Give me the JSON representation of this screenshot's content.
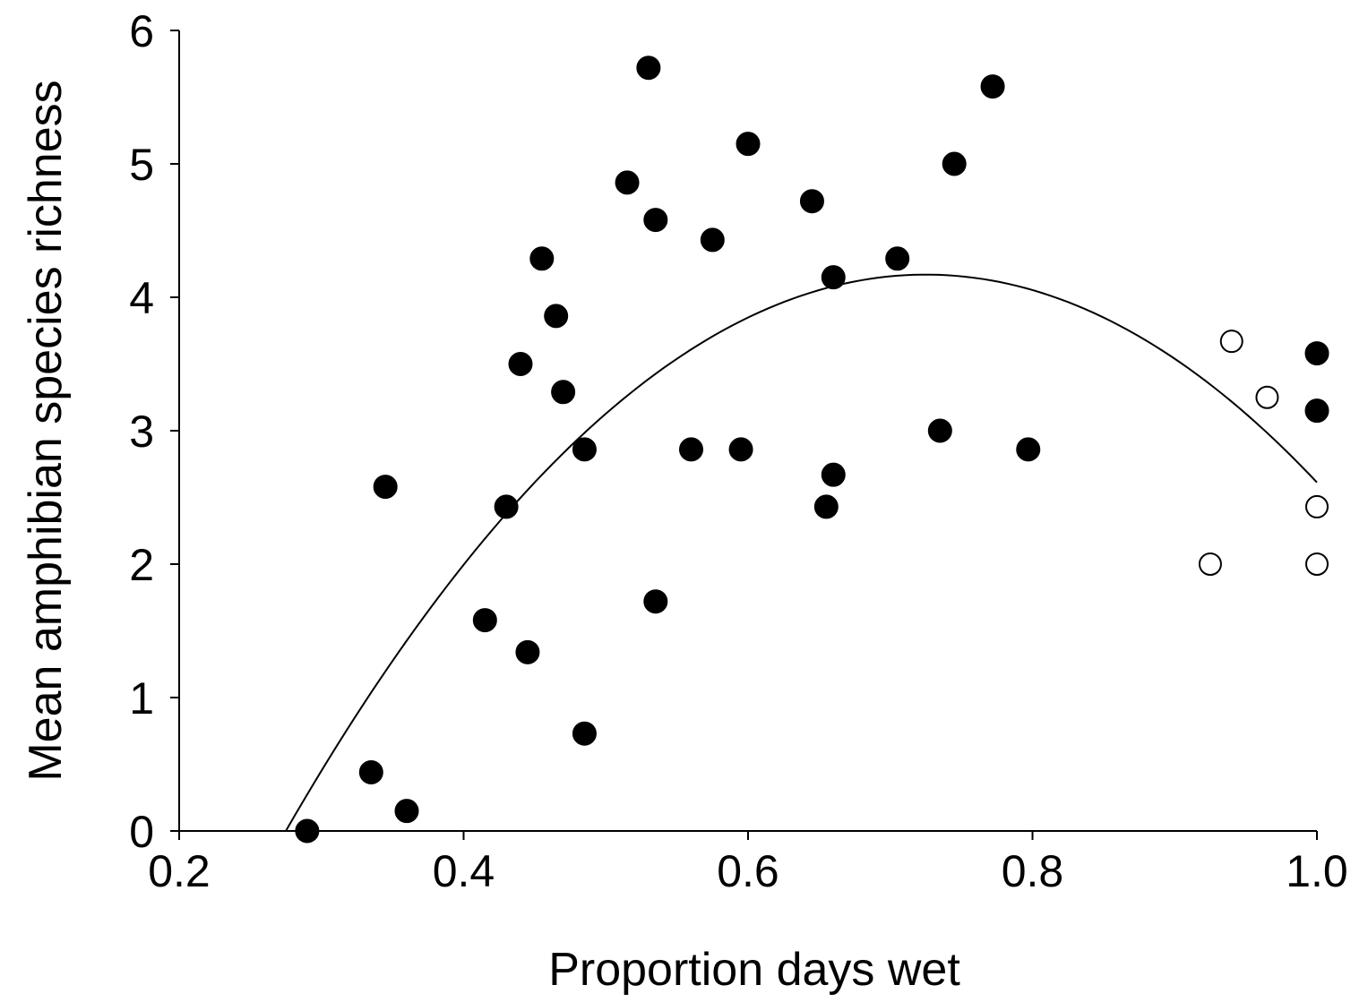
{
  "chart_data": {
    "type": "scatter",
    "title": "",
    "xlabel": "Proportion days wet",
    "ylabel": "Mean amphibian species richness",
    "xlim": [
      0.2,
      1.0
    ],
    "ylim": [
      0,
      6
    ],
    "xticks": [
      0.2,
      0.4,
      0.6,
      0.8,
      1.0
    ],
    "xtick_labels": [
      "0.2",
      "0.4",
      "0.6",
      "0.8",
      "1.0"
    ],
    "yticks": [
      0,
      1,
      2,
      3,
      4,
      5,
      6
    ],
    "ytick_labels": [
      "0",
      "1",
      "2",
      "3",
      "4",
      "5",
      "6"
    ],
    "grid": false,
    "legend": "none",
    "series": [
      {
        "marker": "filled-circle",
        "color": "#000000",
        "points": [
          [
            0.29,
            0.0
          ],
          [
            0.335,
            0.44
          ],
          [
            0.345,
            2.58
          ],
          [
            0.36,
            0.15
          ],
          [
            0.415,
            1.58
          ],
          [
            0.43,
            2.43
          ],
          [
            0.44,
            3.5
          ],
          [
            0.445,
            1.34
          ],
          [
            0.455,
            4.29
          ],
          [
            0.465,
            3.86
          ],
          [
            0.47,
            3.29
          ],
          [
            0.485,
            2.86
          ],
          [
            0.485,
            0.73
          ],
          [
            0.515,
            4.86
          ],
          [
            0.53,
            5.72
          ],
          [
            0.535,
            4.58
          ],
          [
            0.535,
            1.72
          ],
          [
            0.56,
            2.86
          ],
          [
            0.575,
            4.43
          ],
          [
            0.595,
            2.86
          ],
          [
            0.6,
            5.15
          ],
          [
            0.645,
            4.72
          ],
          [
            0.655,
            2.43
          ],
          [
            0.66,
            4.15
          ],
          [
            0.66,
            2.67
          ],
          [
            0.705,
            4.29
          ],
          [
            0.735,
            3.0
          ],
          [
            0.745,
            5.0
          ],
          [
            0.772,
            5.58
          ],
          [
            0.797,
            2.86
          ],
          [
            1.0,
            3.58
          ],
          [
            1.0,
            3.15
          ]
        ]
      },
      {
        "marker": "open-circle",
        "color": "#000000",
        "points": [
          [
            0.925,
            2.0
          ],
          [
            0.94,
            3.67
          ],
          [
            0.965,
            3.25
          ],
          [
            1.0,
            2.43
          ],
          [
            1.0,
            2.0
          ]
        ]
      }
    ],
    "fit_curve": {
      "type": "quadratic",
      "x_range": [
        0.275,
        1.0
      ],
      "peak": [
        0.725,
        4.17
      ],
      "points": [
        [
          0.275,
          0.0
        ],
        [
          0.3,
          0.55
        ],
        [
          0.4,
          2.22
        ],
        [
          0.5,
          3.38
        ],
        [
          0.6,
          4.0
        ],
        [
          0.7,
          4.15
        ],
        [
          0.725,
          4.17
        ],
        [
          0.8,
          4.0
        ],
        [
          0.9,
          3.45
        ],
        [
          1.0,
          2.6
        ]
      ]
    }
  }
}
